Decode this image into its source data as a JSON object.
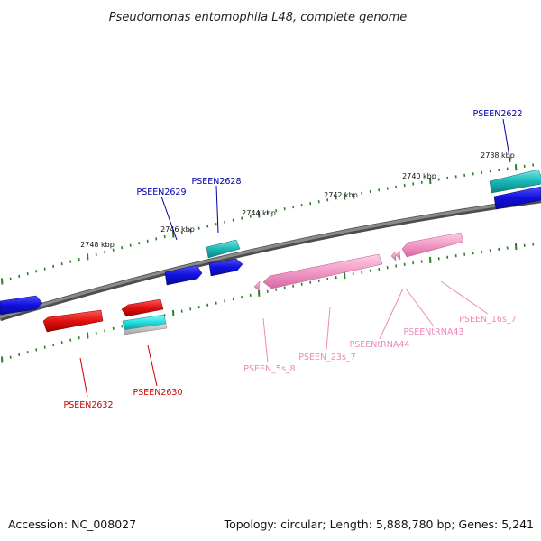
{
  "title": "Pseudomonas entomophila L48, complete genome",
  "footer": {
    "accession": "Accession: NC_008027",
    "summary": "Topology: circular; Length: 5,888,780 bp; Genes: 5,241"
  },
  "colors": {
    "background": "#ffffff",
    "backbone": "#7a7a7a",
    "ticks": "#2e7d2e",
    "cds_blue": "#1010dd",
    "cds_red": "#e01010",
    "cds_cyan": "#1ab8b8",
    "rna_pink": "#f29ac6",
    "label_blue": "#0000aa",
    "label_red": "#cc0000",
    "label_pink": "#ee88bb"
  },
  "scale": {
    "tick_labels": [
      "2738 kbp",
      "2740 kbp",
      "2742 kbp",
      "2744 kbp",
      "2746 kbp",
      "2748 kbp"
    ]
  },
  "gene_labels": [
    {
      "name": "PSEEN2622",
      "color": "label_blue"
    },
    {
      "name": "PSEEN2628",
      "color": "label_blue"
    },
    {
      "name": "PSEEN2629",
      "color": "label_blue"
    },
    {
      "name": "PSEEN2630",
      "color": "label_red"
    },
    {
      "name": "PSEEN2632",
      "color": "label_red"
    },
    {
      "name": "PSEEN_5s_8",
      "color": "label_pink"
    },
    {
      "name": "PSEEN_23s_7",
      "color": "label_pink"
    },
    {
      "name": "PSEENtRNA44",
      "color": "label_pink"
    },
    {
      "name": "PSEENtRNA43",
      "color": "label_pink"
    },
    {
      "name": "PSEEN_16s_7",
      "color": "label_pink"
    }
  ]
}
